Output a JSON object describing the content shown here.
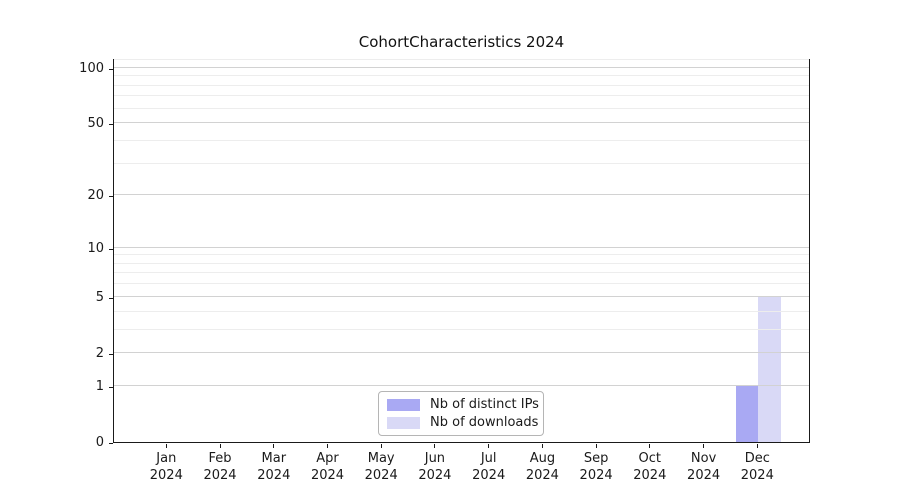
{
  "title": "CohortCharacteristics 2024",
  "chart_data": {
    "type": "bar",
    "title": "CohortCharacteristics 2024",
    "categories": [
      "Jan 2024",
      "Feb 2024",
      "Mar 2024",
      "Apr 2024",
      "May 2024",
      "Jun 2024",
      "Jul 2024",
      "Aug 2024",
      "Sep 2024",
      "Oct 2024",
      "Nov 2024",
      "Dec 2024"
    ],
    "series": [
      {
        "name": "Nb of distinct IPs",
        "color": "#a9a9f3",
        "values": [
          0,
          0,
          0,
          0,
          0,
          0,
          0,
          0,
          0,
          0,
          0,
          1
        ]
      },
      {
        "name": "Nb of downloads",
        "color": "#d9d9f6",
        "values": [
          0,
          0,
          0,
          0,
          0,
          0,
          0,
          0,
          0,
          0,
          0,
          5
        ]
      }
    ],
    "xlabel": "",
    "ylabel": "",
    "yscale": "log1p",
    "ylim": [
      0,
      113
    ],
    "yticks": [
      0,
      1,
      2,
      5,
      10,
      20,
      50,
      100
    ],
    "minor_yticks": [
      3,
      4,
      6,
      7,
      8,
      9,
      30,
      40,
      60,
      70,
      80,
      90,
      110
    ],
    "grid": true,
    "legend_position": "lower center"
  },
  "colors": {
    "major_grid": "#d2d2d2",
    "minor_grid": "#ededed",
    "axis": "#1a1a1a"
  }
}
